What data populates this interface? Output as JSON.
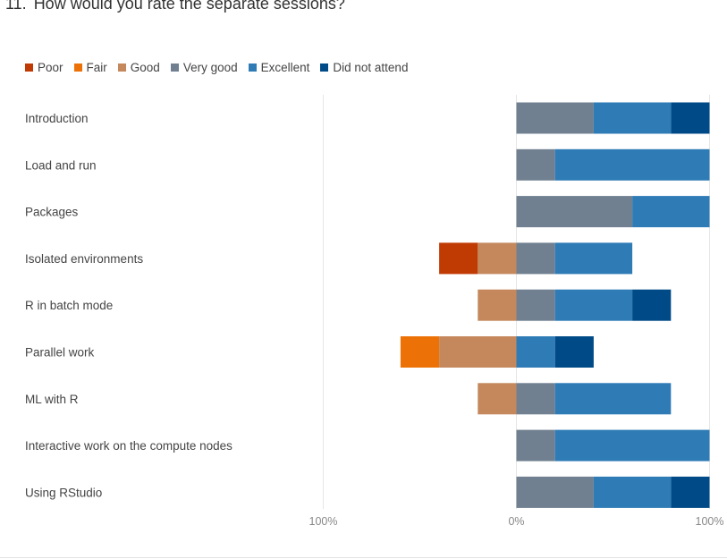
{
  "question": {
    "number": "11.",
    "text": "How would you rate the separate sessions?"
  },
  "chart_data": {
    "type": "bar",
    "orientation": "horizontal",
    "stacked": "diverging",
    "categories": [
      "Introduction",
      "Load and run",
      "Packages",
      "Isolated environments",
      "R in batch mode",
      "Parallel work",
      "ML with R",
      "Interactive work on the compute nodes",
      "Using RStudio"
    ],
    "series": [
      {
        "name": "Poor",
        "color": "#c03b04",
        "side": "negative",
        "values": [
          0,
          0,
          0,
          20,
          0,
          0,
          0,
          0,
          0
        ]
      },
      {
        "name": "Fair",
        "color": "#ec7208",
        "side": "negative",
        "values": [
          0,
          0,
          0,
          0,
          0,
          20,
          0,
          0,
          0
        ]
      },
      {
        "name": "Good",
        "color": "#c4885c",
        "side": "negative",
        "values": [
          0,
          0,
          0,
          20,
          20,
          40,
          20,
          0,
          0
        ]
      },
      {
        "name": "Very good",
        "color": "#708090",
        "side": "positive",
        "values": [
          40,
          20,
          60,
          20,
          20,
          0,
          20,
          20,
          40
        ]
      },
      {
        "name": "Excellent",
        "color": "#2e7bb6",
        "side": "positive",
        "values": [
          40,
          80,
          40,
          40,
          40,
          20,
          60,
          80,
          40
        ]
      },
      {
        "name": "Did not attend",
        "color": "#004a87",
        "side": "positive",
        "values": [
          20,
          0,
          0,
          0,
          20,
          20,
          0,
          0,
          20
        ]
      }
    ],
    "xlim": [
      -100,
      100
    ],
    "x_ticks": [
      {
        "value": -100,
        "label": "100%"
      },
      {
        "value": 0,
        "label": "0%"
      },
      {
        "value": 100,
        "label": "100%"
      }
    ],
    "grid": "vertical-lines-at-ticks",
    "legend_position": "top-left"
  }
}
